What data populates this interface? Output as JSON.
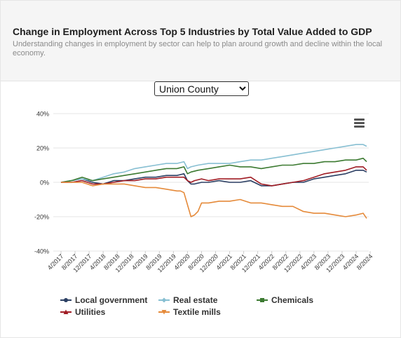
{
  "header": {
    "title": "Change in Employment Across Top 5 Industries by Total Value Added to GDP",
    "subtitle": "Understanding changes in employment by sector can help to plan around growth and decline within the local economy."
  },
  "region_select": {
    "selected": "Union County",
    "options": [
      "Union County"
    ]
  },
  "menu": {
    "icon": "hamburger-menu-icon"
  },
  "chart_data": {
    "type": "line",
    "y_tick_labels": [
      "40%",
      "20%",
      "0%",
      "-20%",
      "-40%"
    ],
    "y_tick_values": [
      40,
      20,
      0,
      -20,
      -40
    ],
    "ylim": [
      -40,
      40
    ],
    "x_tick_labels": [
      "4/2017",
      "8/2017",
      "12/2017",
      "4/2018",
      "8/2018",
      "12/2018",
      "4/2019",
      "8/2019",
      "12/2019",
      "4/2020",
      "8/2020",
      "12/2020",
      "4/2021",
      "8/2021",
      "12/2021",
      "4/2022",
      "8/2022",
      "12/2022",
      "4/2023",
      "8/2023",
      "12/2023",
      "4/2024",
      "8/2024"
    ],
    "x_start": "4/2017",
    "x_end": "9/2024",
    "grid": true,
    "legend_position": "bottom",
    "series": [
      {
        "name": "Local government",
        "color": "#2b3f63",
        "marker": "circle",
        "points": [
          [
            0,
            0
          ],
          [
            3,
            1
          ],
          [
            6,
            2
          ],
          [
            9,
            0
          ],
          [
            12,
            -1
          ],
          [
            15,
            1
          ],
          [
            18,
            1
          ],
          [
            21,
            2
          ],
          [
            24,
            3
          ],
          [
            27,
            3
          ],
          [
            30,
            4
          ],
          [
            33,
            4
          ],
          [
            35,
            5
          ],
          [
            36,
            1
          ],
          [
            37,
            -1
          ],
          [
            38,
            -1
          ],
          [
            40,
            0
          ],
          [
            42,
            0
          ],
          [
            45,
            1
          ],
          [
            48,
            0
          ],
          [
            51,
            0
          ],
          [
            54,
            1
          ],
          [
            57,
            -2
          ],
          [
            60,
            -2
          ],
          [
            63,
            -1
          ],
          [
            66,
            0
          ],
          [
            69,
            0
          ],
          [
            72,
            2
          ],
          [
            75,
            3
          ],
          [
            78,
            4
          ],
          [
            81,
            5
          ],
          [
            84,
            7
          ],
          [
            86,
            7
          ],
          [
            87,
            6
          ]
        ]
      },
      {
        "name": "Real estate",
        "color": "#87bfd2",
        "marker": "diamond",
        "points": [
          [
            0,
            0
          ],
          [
            3,
            1
          ],
          [
            6,
            2
          ],
          [
            9,
            1
          ],
          [
            12,
            3
          ],
          [
            15,
            5
          ],
          [
            18,
            6
          ],
          [
            21,
            8
          ],
          [
            24,
            9
          ],
          [
            27,
            10
          ],
          [
            30,
            11
          ],
          [
            33,
            11
          ],
          [
            35,
            12
          ],
          [
            36,
            8
          ],
          [
            37,
            9
          ],
          [
            39,
            10
          ],
          [
            42,
            11
          ],
          [
            45,
            11
          ],
          [
            48,
            11
          ],
          [
            51,
            12
          ],
          [
            54,
            13
          ],
          [
            57,
            13
          ],
          [
            60,
            14
          ],
          [
            63,
            15
          ],
          [
            66,
            16
          ],
          [
            69,
            17
          ],
          [
            72,
            18
          ],
          [
            75,
            19
          ],
          [
            78,
            20
          ],
          [
            81,
            21
          ],
          [
            84,
            22
          ],
          [
            86,
            22
          ],
          [
            87,
            21
          ]
        ]
      },
      {
        "name": "Chemicals",
        "color": "#3c7a31",
        "marker": "square",
        "points": [
          [
            0,
            0
          ],
          [
            3,
            1
          ],
          [
            6,
            3
          ],
          [
            9,
            1
          ],
          [
            12,
            2
          ],
          [
            15,
            3
          ],
          [
            18,
            4
          ],
          [
            21,
            5
          ],
          [
            24,
            6
          ],
          [
            27,
            7
          ],
          [
            30,
            8
          ],
          [
            33,
            8
          ],
          [
            35,
            9
          ],
          [
            36,
            5
          ],
          [
            37,
            6
          ],
          [
            39,
            7
          ],
          [
            42,
            8
          ],
          [
            45,
            9
          ],
          [
            48,
            10
          ],
          [
            51,
            9
          ],
          [
            54,
            9
          ],
          [
            57,
            8
          ],
          [
            60,
            9
          ],
          [
            63,
            10
          ],
          [
            66,
            10
          ],
          [
            69,
            11
          ],
          [
            72,
            11
          ],
          [
            75,
            12
          ],
          [
            78,
            12
          ],
          [
            81,
            13
          ],
          [
            84,
            13
          ],
          [
            86,
            14
          ],
          [
            87,
            12
          ]
        ]
      },
      {
        "name": "Utilities",
        "color": "#a01c24",
        "marker": "triangle",
        "points": [
          [
            0,
            0
          ],
          [
            3,
            0
          ],
          [
            6,
            1
          ],
          [
            9,
            -1
          ],
          [
            12,
            -1
          ],
          [
            15,
            0
          ],
          [
            18,
            1
          ],
          [
            21,
            1
          ],
          [
            24,
            2
          ],
          [
            27,
            2
          ],
          [
            30,
            3
          ],
          [
            33,
            3
          ],
          [
            35,
            3
          ],
          [
            36,
            1
          ],
          [
            37,
            0
          ],
          [
            38,
            1
          ],
          [
            40,
            2
          ],
          [
            42,
            1
          ],
          [
            45,
            2
          ],
          [
            48,
            2
          ],
          [
            51,
            2
          ],
          [
            54,
            3
          ],
          [
            57,
            -1
          ],
          [
            60,
            -2
          ],
          [
            63,
            -1
          ],
          [
            66,
            0
          ],
          [
            69,
            1
          ],
          [
            72,
            3
          ],
          [
            75,
            5
          ],
          [
            78,
            6
          ],
          [
            81,
            7
          ],
          [
            84,
            9
          ],
          [
            86,
            9
          ],
          [
            87,
            7
          ]
        ]
      },
      {
        "name": "Textile mills",
        "color": "#e58a3a",
        "marker": "triangle-down",
        "points": [
          [
            0,
            0
          ],
          [
            3,
            0
          ],
          [
            6,
            0
          ],
          [
            9,
            -2
          ],
          [
            12,
            -1
          ],
          [
            15,
            -1
          ],
          [
            18,
            -1
          ],
          [
            21,
            -2
          ],
          [
            24,
            -3
          ],
          [
            27,
            -3
          ],
          [
            30,
            -4
          ],
          [
            33,
            -5
          ],
          [
            34,
            -5
          ],
          [
            35,
            -6
          ],
          [
            36,
            -13
          ],
          [
            37,
            -20
          ],
          [
            38,
            -19
          ],
          [
            39,
            -17
          ],
          [
            40,
            -12
          ],
          [
            42,
            -12
          ],
          [
            45,
            -11
          ],
          [
            48,
            -11
          ],
          [
            51,
            -10
          ],
          [
            54,
            -12
          ],
          [
            57,
            -12
          ],
          [
            60,
            -13
          ],
          [
            63,
            -14
          ],
          [
            66,
            -14
          ],
          [
            69,
            -17
          ],
          [
            72,
            -18
          ],
          [
            75,
            -18
          ],
          [
            78,
            -19
          ],
          [
            81,
            -20
          ],
          [
            84,
            -19
          ],
          [
            86,
            -18
          ],
          [
            87,
            -21
          ]
        ]
      }
    ]
  }
}
